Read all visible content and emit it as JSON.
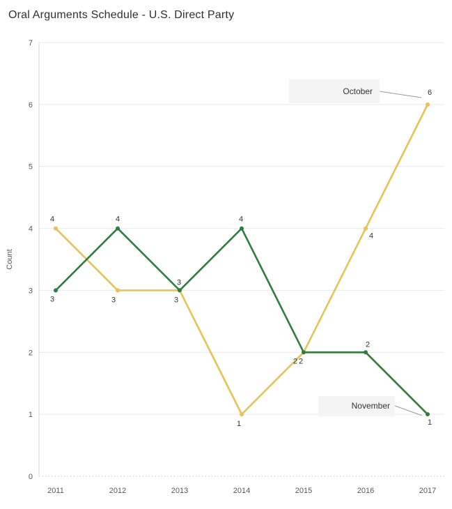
{
  "title": "Oral Arguments Schedule - U.S. Direct Party",
  "chart_data": {
    "type": "line",
    "title": "Oral Arguments Schedule - U.S. Direct Party",
    "x": [
      "2011",
      "2012",
      "2013",
      "2014",
      "2015",
      "2016",
      "2017"
    ],
    "series": [
      {
        "name": "October",
        "color": "#e7c254",
        "values": [
          4,
          3,
          3,
          1,
          2,
          4,
          6
        ]
      },
      {
        "name": "November",
        "color": "#2e7d3e",
        "values": [
          3,
          4,
          3,
          4,
          2,
          2,
          1
        ]
      }
    ],
    "xlabel": "",
    "ylabel": "Count",
    "ylim": [
      0,
      7
    ],
    "yticks": [
      0,
      1,
      2,
      3,
      4,
      5,
      6,
      7
    ],
    "grid": true,
    "legend": "none",
    "value_labels": true,
    "annotations": [
      {
        "text": "October",
        "target_series": "October",
        "target_x": "2017",
        "target_value": 6
      },
      {
        "text": "November",
        "target_series": "November",
        "target_x": "2017",
        "target_value": 1
      }
    ]
  }
}
